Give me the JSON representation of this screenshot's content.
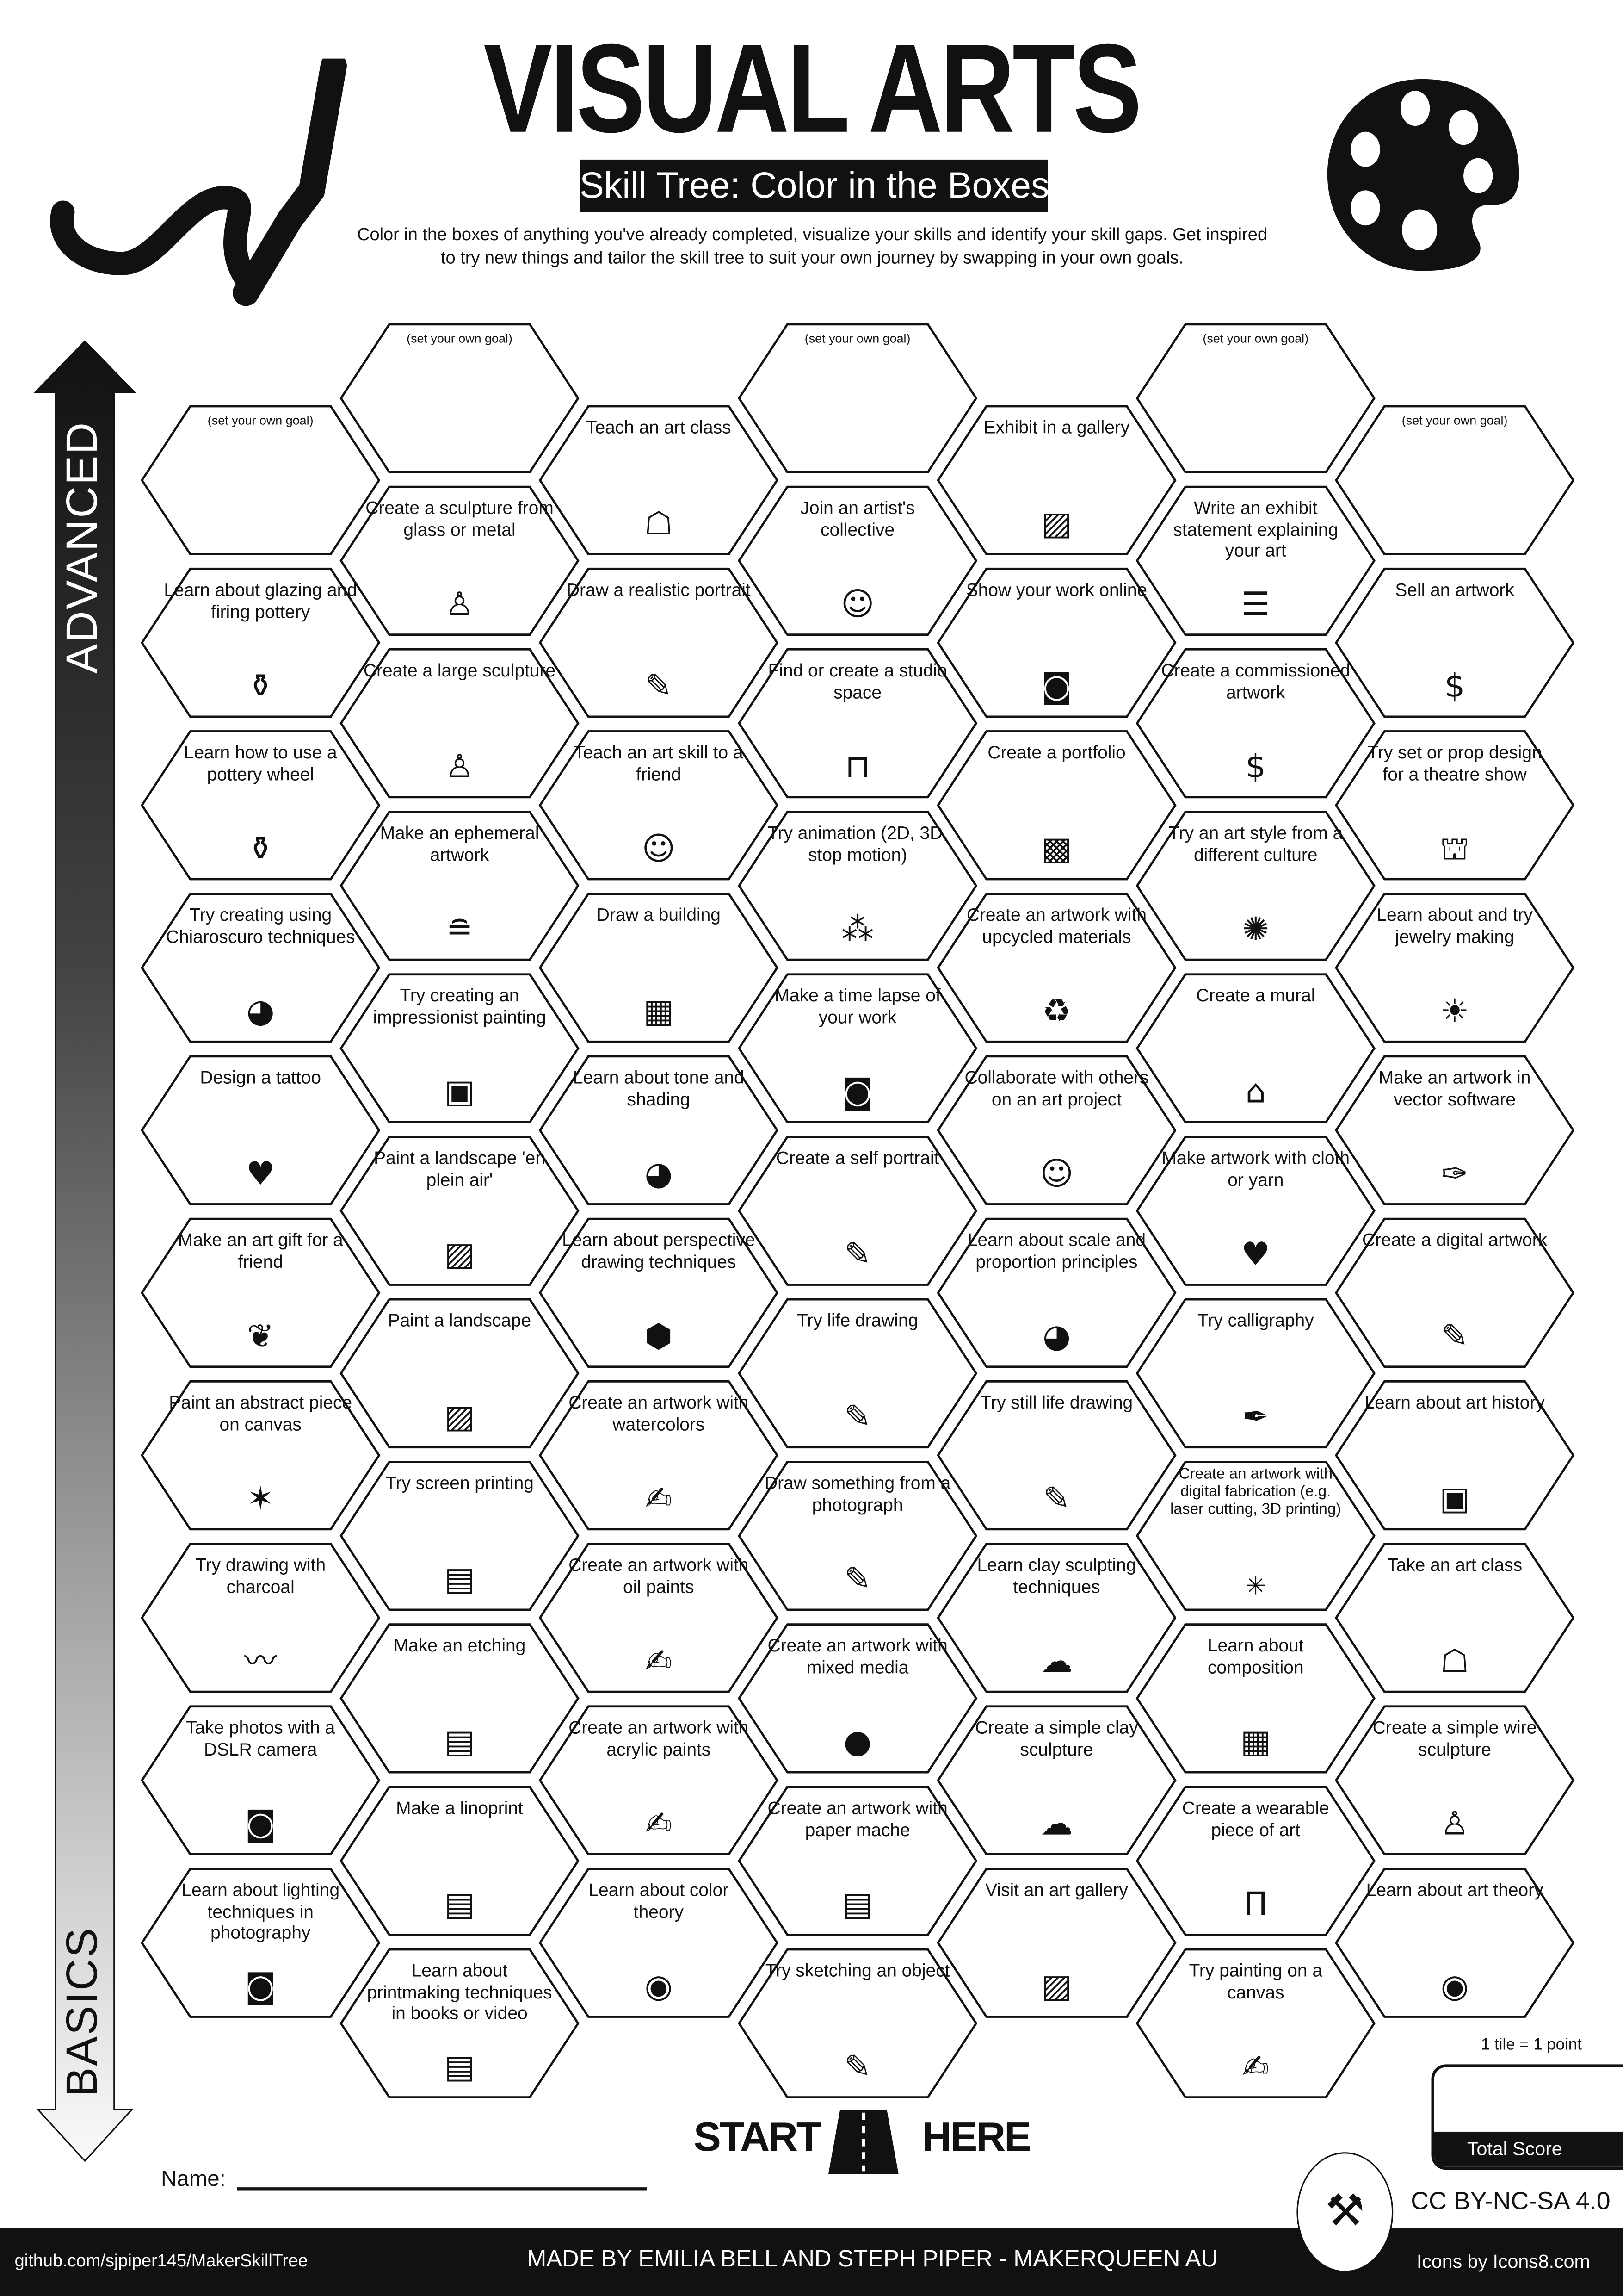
{
  "header": {
    "title": "VISUAL ARTS",
    "subtitle": "Skill Tree: Color in the Boxes",
    "description_line1": "Color in the boxes of anything you've already completed, visualize your skills and identify your skill gaps.  Get inspired",
    "description_line2": "to try new things and tailor the skill tree to suit your own journey by swapping in your own goals.",
    "left_icon": "paintbrush-stroke-icon",
    "right_icon": "palette-icon"
  },
  "axis": {
    "top": "ADVANCED",
    "bottom": "BASICS"
  },
  "goal_text": "(set your own goal)",
  "columns": [
    [
      {
        "goal": true
      },
      {
        "label": "Learn about glazing and firing pottery",
        "icon": "pottery"
      },
      {
        "label": "Learn how to use a pottery wheel",
        "icon": "pottery"
      },
      {
        "label": "Try creating using Chiaroscuro techniques",
        "icon": "sphere"
      },
      {
        "label": "Design a tattoo",
        "icon": "heart-arrow"
      },
      {
        "label": "Make an art gift for a friend",
        "icon": "gift"
      },
      {
        "label": "Paint an abstract piece on canvas",
        "icon": "abstract"
      },
      {
        "label": "Try drawing with charcoal",
        "icon": "charcoal"
      },
      {
        "label": "Take photos with a DSLR camera",
        "icon": "camera"
      },
      {
        "label": "Learn about lighting techniques in photography",
        "icon": "camera"
      }
    ],
    [
      {
        "goal": true
      },
      {
        "label": "Create a sculpture from glass or metal",
        "icon": "statue"
      },
      {
        "label": "Create a large sculpture",
        "icon": "statue"
      },
      {
        "label": "Make an ephemeral artwork",
        "icon": "stones"
      },
      {
        "label": "Try creating an impressionist painting",
        "icon": "painting"
      },
      {
        "label": "Paint a landscape 'en plein air'",
        "icon": "image"
      },
      {
        "label": "Paint a landscape",
        "icon": "image"
      },
      {
        "label": "Try screen printing",
        "icon": "printer"
      },
      {
        "label": "Make an etching",
        "icon": "printer"
      },
      {
        "label": "Make a linoprint",
        "icon": "printer"
      },
      {
        "label": "Learn about printmaking techniques in books or video",
        "icon": "printer"
      }
    ],
    [
      {
        "label": "Teach an art class",
        "icon": "teacher"
      },
      {
        "label": "Draw a realistic portrait",
        "icon": "pencil"
      },
      {
        "label": "Teach an art skill to a friend",
        "icon": "collab"
      },
      {
        "label": "Draw a building",
        "icon": "building"
      },
      {
        "label": "Learn about tone and shading",
        "icon": "sphere"
      },
      {
        "label": "Learn about perspective drawing techniques",
        "icon": "cube"
      },
      {
        "label": "Create an artwork with watercolors",
        "icon": "brush"
      },
      {
        "label": "Create an artwork with oil paints",
        "icon": "brush"
      },
      {
        "label": "Create an artwork with acrylic paints",
        "icon": "brush"
      },
      {
        "label": "Learn about color theory",
        "icon": "palette"
      }
    ],
    [
      {
        "goal": true
      },
      {
        "label": "Join an artist's collective",
        "icon": "collab"
      },
      {
        "label": "Find or create a studio space",
        "icon": "desk"
      },
      {
        "label": "Try animation (2D, 3D, stop motion)",
        "icon": "animation"
      },
      {
        "label": "Make a time lapse of your work",
        "icon": "camera"
      },
      {
        "label": "Create a self portrait",
        "icon": "pencil"
      },
      {
        "label": "Try life drawing",
        "icon": "pencil"
      },
      {
        "label": "Draw something from a photograph",
        "icon": "pencil"
      },
      {
        "label": "Create an artwork with mixed media",
        "icon": "mixed"
      },
      {
        "label": "Create an artwork with paper mache",
        "icon": "newspaper"
      },
      {
        "label": "Try sketching an object",
        "icon": "pencil"
      }
    ],
    [
      {
        "label": "Exhibit in a gallery",
        "icon": "image"
      },
      {
        "label": "Show your work online",
        "icon": "camera"
      },
      {
        "label": "Create a portfolio",
        "icon": "badge"
      },
      {
        "label": "Create an artwork with upcycled materials",
        "icon": "recycle"
      },
      {
        "label": "Collaborate with others on an art project",
        "icon": "collab"
      },
      {
        "label": "Learn about scale and proportion principles",
        "icon": "sphere"
      },
      {
        "label": "Try still life drawing",
        "icon": "pencil"
      },
      {
        "label": "Learn clay sculpting techniques",
        "icon": "clay"
      },
      {
        "label": "Create a simple clay sculpture",
        "icon": "clay"
      },
      {
        "label": "Visit an art gallery",
        "icon": "image"
      }
    ],
    [
      {
        "goal": true
      },
      {
        "label": "Write an exhibit statement explaining your art",
        "icon": "document"
      },
      {
        "label": "Create a commissioned artwork",
        "icon": "money-bag"
      },
      {
        "label": "Try an art style from a different culture",
        "icon": "mandala"
      },
      {
        "label": "Create a mural",
        "icon": "house"
      },
      {
        "label": "Make artwork with cloth or yarn",
        "icon": "knit-heart"
      },
      {
        "label": "Try calligraphy",
        "icon": "pen-nib"
      },
      {
        "label": "Create an artwork with digital fabrication (e.g. laser cutting, 3D printing)",
        "icon": "laser"
      },
      {
        "label": "Learn about composition",
        "icon": "grid"
      },
      {
        "label": "Create a wearable piece of art",
        "icon": "pants"
      },
      {
        "label": "Try painting on a canvas",
        "icon": "brush"
      }
    ],
    [
      {
        "goal": true
      },
      {
        "label": "Sell an artwork",
        "icon": "money-bag"
      },
      {
        "label": "Try set or prop design for a theatre show",
        "icon": "curtains"
      },
      {
        "label": "Learn about and try jewelry making",
        "icon": "sunrise"
      },
      {
        "label": "Make an artwork in vector software",
        "icon": "vector"
      },
      {
        "label": "Create a digital artwork",
        "icon": "pencil"
      },
      {
        "label": "Learn about art history",
        "icon": "painting"
      },
      {
        "label": "Take an art class",
        "icon": "teacher"
      },
      {
        "label": "Create a simple wire sculpture",
        "icon": "statue"
      },
      {
        "label": "Learn about art theory",
        "icon": "palette"
      }
    ]
  ],
  "start": {
    "left": "START",
    "right": "HERE"
  },
  "name_label": "Name:",
  "score": {
    "rule": "1 tile = 1 point",
    "label": "Total Score"
  },
  "license": "CC BY-NC-SA 4.0",
  "footer": {
    "left": "github.com/sjpiper145/MakerSkillTree",
    "center": "MADE BY EMILIA BELL AND STEPH PIPER  -  MAKERQUEEN AU",
    "right": "Icons by Icons8.com"
  }
}
